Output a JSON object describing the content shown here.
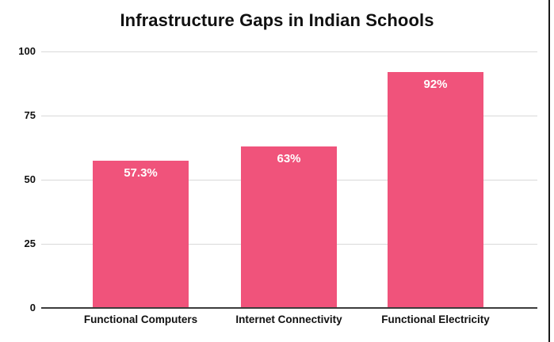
{
  "chart": {
    "title": "Infrastructure Gaps in Indian Schools"
  },
  "chart_data": {
    "type": "bar",
    "title": "Infrastructure Gaps in Indian Schools",
    "categories": [
      "Functional Computers",
      "Internet Connectivity",
      "Functional Electricity"
    ],
    "values": [
      57.3,
      63,
      92
    ],
    "bar_labels": [
      "57.3%",
      "63%",
      "92%"
    ],
    "xlabel": "",
    "ylabel": "",
    "y_ticks": [
      0,
      25,
      50,
      75,
      100
    ],
    "ylim": [
      0,
      100
    ],
    "grid": true,
    "legend_position": "none",
    "colors": {
      "bar": "#F0537B",
      "gridline": "#D9D9D9",
      "axis": "#3C3C3C",
      "bar_label_text": "#FFFFFF",
      "text": "#111111",
      "background": "#FFFFFF",
      "right_border": "#1A1A1A"
    }
  }
}
